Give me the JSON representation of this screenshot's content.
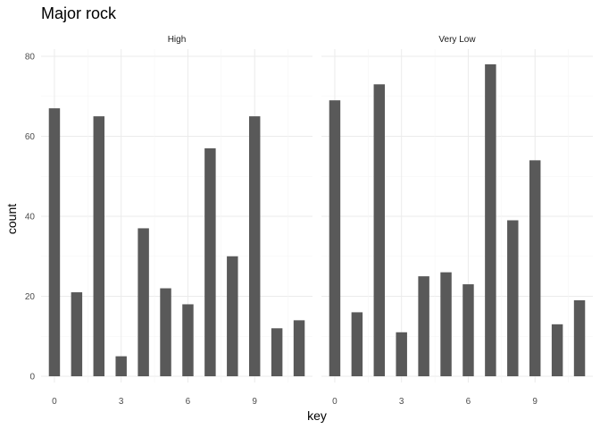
{
  "chart_data": {
    "type": "bar",
    "title": "Major rock",
    "xlabel": "key",
    "ylabel": "count",
    "ylim": [
      0,
      80
    ],
    "y_ticks": [
      "0",
      "20",
      "40",
      "60",
      "80"
    ],
    "xlim": [
      -0.6,
      11.6
    ],
    "x_ticks": [
      "0",
      "3",
      "6",
      "9"
    ],
    "bar_color": "#595959",
    "panels": [
      {
        "strip": "High",
        "x": [
          0,
          1,
          2,
          3,
          4,
          5,
          6,
          7,
          8,
          9,
          10,
          11
        ],
        "values": [
          67,
          21,
          65,
          5,
          37,
          22,
          18,
          57,
          30,
          65,
          12,
          14
        ]
      },
      {
        "strip": "Very Low",
        "x": [
          0,
          1,
          2,
          3,
          4,
          5,
          6,
          7,
          8,
          9,
          10,
          11
        ],
        "values": [
          69,
          16,
          73,
          11,
          25,
          26,
          23,
          78,
          39,
          54,
          13,
          19
        ]
      }
    ]
  }
}
